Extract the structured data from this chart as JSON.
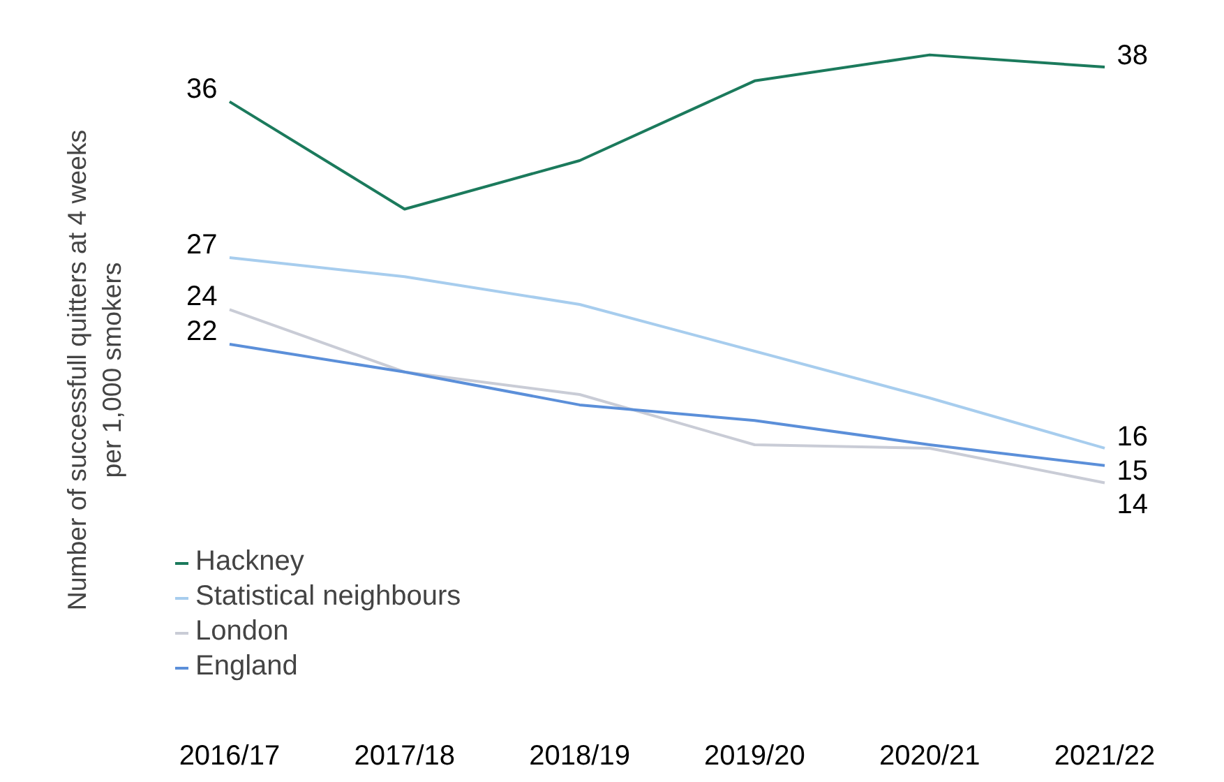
{
  "chart_data": {
    "type": "line",
    "ylabel": "Number of successfull quitters at 4 weeks\nper 1,000 smokers",
    "categories": [
      "2016/17",
      "2017/18",
      "2018/19",
      "2019/20",
      "2020/21",
      "2021/22"
    ],
    "series": [
      {
        "name": "Hackney",
        "color": "#1b7a5c",
        "values": [
          36,
          29.8,
          32.6,
          37.2,
          38.7,
          38
        ],
        "value_labels": [
          "36",
          null,
          null,
          null,
          null,
          "38"
        ]
      },
      {
        "name": "Statistical neighbours",
        "color": "#a7cdee",
        "values": [
          27,
          25.9,
          24.3,
          21.6,
          18.9,
          16
        ],
        "value_labels": [
          "27",
          null,
          null,
          null,
          null,
          "16"
        ]
      },
      {
        "name": "London",
        "color": "#c9ccd6",
        "values": [
          24,
          20.4,
          19.1,
          16.2,
          16.0,
          14
        ],
        "value_labels": [
          "24",
          null,
          null,
          null,
          null,
          "14"
        ]
      },
      {
        "name": "England",
        "color": "#5b8fd9",
        "values": [
          22,
          20.4,
          18.5,
          17.6,
          16.2,
          15
        ],
        "value_labels": [
          "22",
          null,
          null,
          null,
          null,
          "15"
        ]
      }
    ],
    "legend": "bottom left",
    "grid": false
  }
}
